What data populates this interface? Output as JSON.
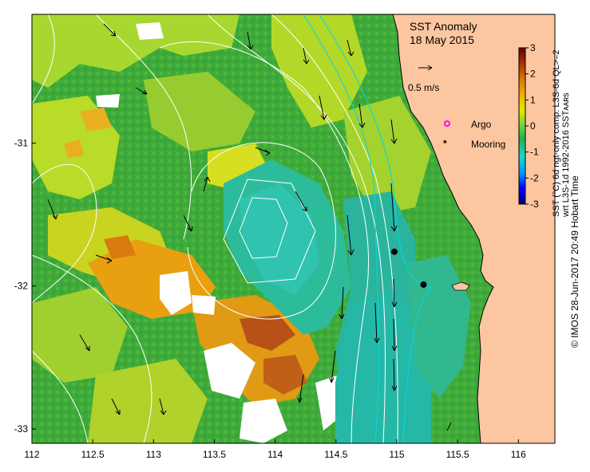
{
  "title": {
    "line1": "SST Anomaly",
    "line2": "18 May 2015"
  },
  "vector_scale": {
    "label": "0.5 m/s"
  },
  "legend": [
    {
      "label": "Argo",
      "symbol": "argo-marker",
      "color": "#ff00ff"
    },
    {
      "label": "Mooring",
      "symbol": "mooring-marker",
      "color": "#000000"
    }
  ],
  "colorbar": {
    "label": "SST (°C) 6d ngt-only comp. L3S-6d QL>=2",
    "label2": "wrt L3S-1d 1992-2016 SSTᴀᴀʀs",
    "ticks": [
      "3",
      "2",
      "1",
      "0",
      "-1",
      "-2",
      "-3"
    ],
    "range": [
      -3,
      3
    ],
    "colors": [
      "#00007a",
      "#0000ff",
      "#0098ff",
      "#16d8c8",
      "#22b24a",
      "#6ad23a",
      "#e2ea00",
      "#f0b000",
      "#d87a00",
      "#a83000",
      "#6a0000"
    ]
  },
  "axes": {
    "x_ticks": [
      "112",
      "112.5",
      "113",
      "113.5",
      "114",
      "114.5",
      "115",
      "115.5",
      "116"
    ],
    "y_ticks": [
      "-31",
      "-32",
      "-33"
    ],
    "lon_range": [
      112,
      116.3
    ],
    "lat_range": [
      -33.1,
      -30.1
    ]
  },
  "markers": {
    "mooring": [
      {
        "lon": 114.98,
        "lat": -31.76
      },
      {
        "lon": 115.22,
        "lat": -31.99
      }
    ]
  },
  "credit": "© IMOS 28-Jun-2017 20:49 Hobart Time",
  "colors": {
    "land": "#fcc6a0",
    "ocean_base": "#3faa3a",
    "contour": "#ffffff",
    "shelf_contour": "#00d8e8"
  }
}
